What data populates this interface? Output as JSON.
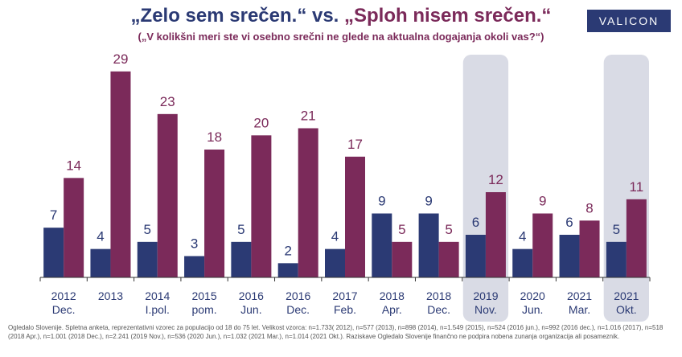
{
  "header": {
    "title_part1": "„Zelo sem srečen.“",
    "title_vs": " vs. ",
    "title_part2": "„Sploh nisem srečen.“",
    "subtitle": "(„V kolikšni meri ste vi osebno srečni ne glede na aktualna dogajanja okoli vas?“)",
    "logo": "VALICON"
  },
  "colors": {
    "series1": "#2b3a74",
    "series2": "#7b2a5a",
    "highlight": "#d9dbe5",
    "axis": "#333333"
  },
  "chart_data": {
    "type": "bar",
    "categories": [
      [
        "2012",
        "Dec."
      ],
      [
        "2013",
        ""
      ],
      [
        "2014",
        "I.pol."
      ],
      [
        "2015",
        "pom."
      ],
      [
        "2016",
        "Jun."
      ],
      [
        "2016",
        "Dec."
      ],
      [
        "2017",
        "Feb."
      ],
      [
        "2018",
        "Apr."
      ],
      [
        "2018",
        "Dec."
      ],
      [
        "2019",
        "Nov."
      ],
      [
        "2020",
        "Jun."
      ],
      [
        "2021",
        "Mar."
      ],
      [
        "2021",
        "Okt."
      ]
    ],
    "series": [
      {
        "values": [
          7,
          4,
          5,
          3,
          5,
          2,
          4,
          9,
          9,
          6,
          4,
          6,
          5
        ]
      },
      {
        "values": [
          14,
          29,
          23,
          18,
          20,
          21,
          17,
          5,
          5,
          12,
          9,
          8,
          11
        ]
      }
    ],
    "highlighted_categories": [
      9,
      12
    ],
    "ylim": [
      0,
      30
    ],
    "grid": false
  },
  "footnote": "Ogledalo Slovenije. Spletna anketa, reprezentativni vzorec za populacijo od 18 do 75 let. Velikost vzorca: n=1.733( 2012), n=577 (2013), n=898 (2014), n=1.549 (2015), n=524 (2016 jun.), n=992 (2016 dec.), n=1.016 (2017), n=518 (2018 Apr.), n=1.001 (2018 Dec.), n=2.241 (2019 Nov.), n=536 (2020 Jun.), n=1.032 (2021 Mar.), n=1.014 (2021 Okt.). Raziskave Ogledalo Slovenije finančno ne podpira nobena zunanja organizacija ali posameznik."
}
